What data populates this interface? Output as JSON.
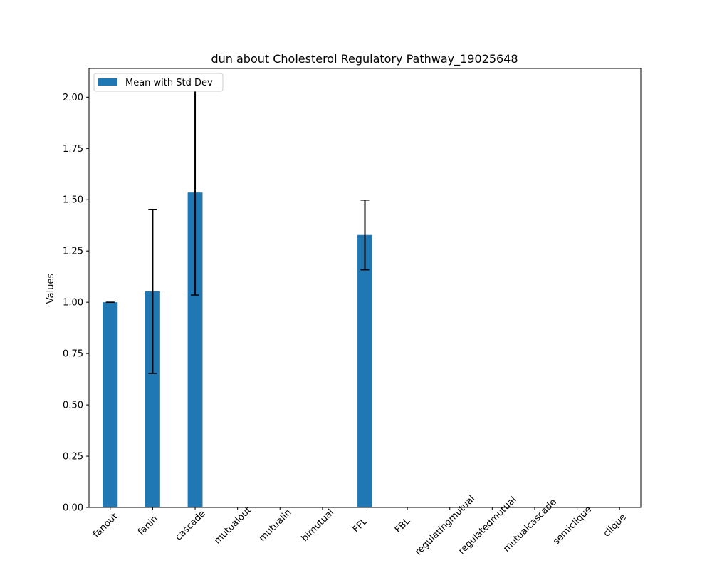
{
  "chart_data": {
    "type": "bar",
    "title": "dun about Cholesterol Regulatory Pathway_19025648",
    "xlabel": "",
    "ylabel": "Values",
    "categories": [
      "fanout",
      "fanin",
      "cascade",
      "mutualout",
      "mutualin",
      "bimutual",
      "FFL",
      "FBL",
      "regulatingmutual",
      "regulatedmutual",
      "mutualcascade",
      "semiclique",
      "clique"
    ],
    "series": [
      {
        "name": "Mean with Std Dev",
        "values": [
          1.0,
          1.053,
          1.535,
          0,
          0,
          0,
          1.328,
          0,
          0,
          0,
          0,
          0,
          0
        ],
        "errors": [
          0.0,
          0.4,
          0.5,
          0,
          0,
          0,
          0.17,
          0,
          0,
          0,
          0,
          0,
          0
        ]
      }
    ],
    "ylim": [
      0,
      2.14
    ],
    "yticks": [
      "0.00",
      "0.25",
      "0.50",
      "0.75",
      "1.00",
      "1.25",
      "1.50",
      "1.75",
      "2.00"
    ],
    "legend_position": "upper-left",
    "grid": false,
    "colors": {
      "bar": "#1f77b4",
      "error": "#000000"
    }
  }
}
